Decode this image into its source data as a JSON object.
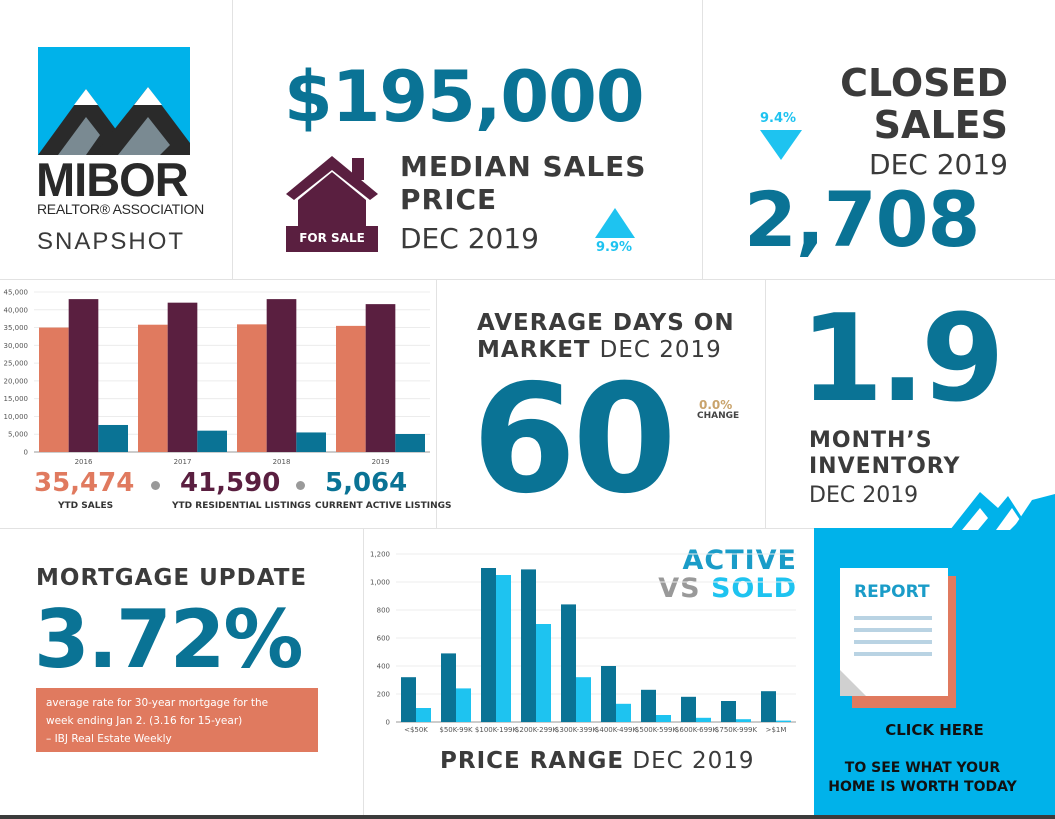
{
  "logo": {
    "wordmark": "MIBOR",
    "association": "REALTOR® ASSOCIATION",
    "snapshot": "SNAPSHOT",
    "brand_color": "#00b2ea",
    "icon": "mountains-icon"
  },
  "median_price": {
    "value": "$195,000",
    "label_line1": "MEDIAN SALES",
    "label_line2": "PRICE",
    "period": "DEC 2019",
    "change": "9.9%",
    "change_direction": "up",
    "badge": "FOR SALE",
    "icon": "house-icon"
  },
  "closed_sales": {
    "label_line1": "CLOSED",
    "label_line2": "SALES",
    "period": "DEC 2019",
    "value": "2,708",
    "change": "9.4%",
    "change_direction": "down"
  },
  "listings_chart": {
    "chart_data": {
      "type": "bar",
      "categories": [
        "2016",
        "2017",
        "2018",
        "2019"
      ],
      "series": [
        {
          "name": "YTD SALES",
          "color": "#e07a5f",
          "values": [
            35000,
            35800,
            35900,
            35474
          ]
        },
        {
          "name": "YTD RESIDENTIAL LISTINGS",
          "color": "#5a1f40",
          "values": [
            43000,
            42000,
            43000,
            41590
          ]
        },
        {
          "name": "CURRENT ACTIVE LISTINGS",
          "color": "#0a7395",
          "values": [
            7600,
            6000,
            5500,
            5064
          ]
        }
      ],
      "yticks": [
        "45,000",
        "40,000",
        "35,000",
        "30,000",
        "25,000",
        "20,000",
        "15,000",
        "10,000",
        "5,000",
        "0"
      ],
      "ylim": [
        0,
        45000
      ]
    },
    "legend": [
      {
        "value": "35,474",
        "label": "YTD SALES",
        "color": "#e07a5f"
      },
      {
        "value": "41,590",
        "label": "YTD RESIDENTIAL LISTINGS",
        "color": "#5a1f40"
      },
      {
        "value": "5,064",
        "label": "CURRENT ACTIVE LISTINGS",
        "color": "#0a7395"
      }
    ]
  },
  "days_on_market": {
    "label_line1": "AVERAGE DAYS ON",
    "label_line2": "MARKET",
    "period": "DEC 2019",
    "value": "60",
    "change": "0.0%",
    "change_label": "CHANGE"
  },
  "inventory": {
    "value": "1.9",
    "label_line1": "MONTH’S",
    "label_line2": "INVENTORY",
    "period": "DEC 2019"
  },
  "mortgage": {
    "title": "MORTGAGE UPDATE",
    "rate": "3.72%",
    "note_line1": "average rate for 30-year mortgage for the",
    "note_line2": "week ending Jan 2. (3.16 for 15-year)",
    "note_line3": "– IBJ Real Estate Weekly"
  },
  "price_range_chart": {
    "heading_active": "ACTIVE",
    "heading_vs": "VS",
    "heading_sold": "SOLD",
    "footer_bold": "PRICE RANGE",
    "footer_period": "DEC 2019",
    "chart_data": {
      "type": "bar",
      "categories": [
        "<$50K",
        "$50K-99K",
        "$100K-199K",
        "$200K-299K",
        "$300K-399K",
        "$400K-499K",
        "$500K-599K",
        "$600K-699K",
        "$750K-999K",
        ">$1M"
      ],
      "series": [
        {
          "name": "ACTIVE",
          "color": "#0a7395",
          "values": [
            320,
            490,
            1100,
            1090,
            840,
            400,
            230,
            180,
            150,
            220
          ]
        },
        {
          "name": "SOLD",
          "color": "#1ec3f0",
          "values": [
            100,
            240,
            1050,
            700,
            320,
            130,
            50,
            30,
            20,
            10
          ]
        }
      ],
      "yticks": [
        "1,200",
        "1,000",
        "800",
        "600",
        "400",
        "200",
        "0"
      ],
      "ylim": [
        0,
        1200
      ]
    }
  },
  "report_cta": {
    "doc_title": "REPORT",
    "click": "CLICK HERE",
    "line1": "TO SEE WHAT YOUR",
    "line2": "HOME IS WORTH TODAY",
    "bg_color": "#00b2ea"
  }
}
